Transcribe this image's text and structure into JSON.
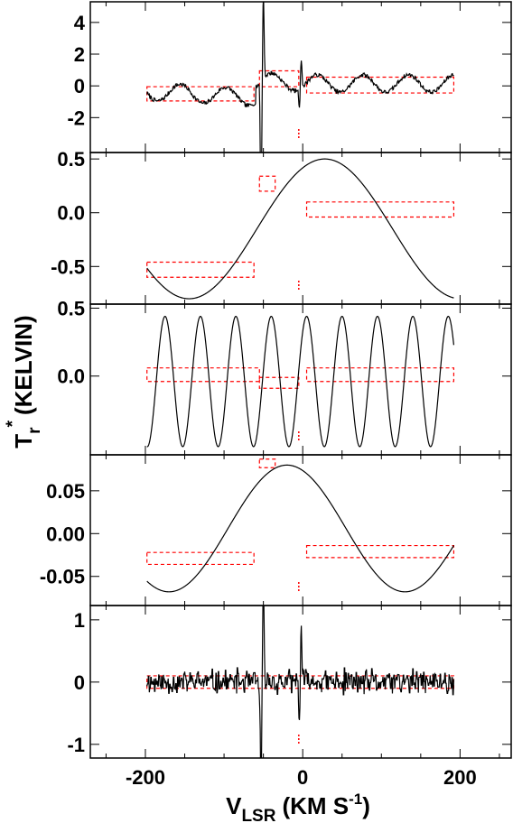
{
  "figure": {
    "ylabel_main": "T",
    "ylabel_sub": "r",
    "ylabel_sup": "*",
    "ylabel_units": "(KELVIN)",
    "xlabel_main": "V",
    "xlabel_sub": "LSR",
    "xlabel_units": "(KM S",
    "xlabel_exp": "-1",
    "xlabel_close": ")"
  },
  "chart_data": [
    {
      "type": "line",
      "panel": 1,
      "xlim": [
        -270,
        265
      ],
      "ylim": [
        -4.2,
        5.3
      ],
      "yticks": [
        4,
        2,
        0,
        -2
      ],
      "ytick_labels": [
        "4",
        "2",
        "0",
        "-2"
      ],
      "xticks": [
        -200,
        0,
        200
      ],
      "series": [
        {
          "kind": "baseline_ripple_plus_spikes",
          "x_range": [
            -198,
            192
          ]
        }
      ],
      "boxes": [
        [
          -198,
          -62,
          -0.95,
          -0.05
        ],
        [
          -55,
          -5,
          -0.05,
          0.95
        ],
        [
          5,
          192,
          -0.45,
          0.55
        ]
      ],
      "marker_x": -5,
      "color": "#000000",
      "box_color": "#ff0000"
    },
    {
      "type": "line",
      "panel": 2,
      "xlim": [
        -270,
        265
      ],
      "ylim": [
        -0.85,
        0.56
      ],
      "yticks": [
        0.5,
        0.0,
        -0.5
      ],
      "ytick_labels": [
        "0.5",
        "0.0",
        "-0.5"
      ],
      "xticks": [
        -200,
        0,
        200
      ],
      "series": [
        {
          "kind": "sine",
          "amplitude": 0.65,
          "offset": -0.15,
          "period": 345,
          "peak_x": 28,
          "x_range": [
            -198,
            192
          ]
        }
      ],
      "boxes": [
        [
          -198,
          -62,
          -0.6,
          -0.46
        ],
        [
          -55,
          -35,
          0.2,
          0.34
        ],
        [
          5,
          192,
          -0.04,
          0.1
        ]
      ],
      "marker_x": -5,
      "color": "#000000",
      "box_color": "#ff0000"
    },
    {
      "type": "line",
      "panel": 3,
      "xlim": [
        -270,
        265
      ],
      "ylim": [
        -0.58,
        0.53
      ],
      "yticks": [
        0.5,
        0.0
      ],
      "ytick_labels": [
        "0.5",
        "0.0"
      ],
      "xticks": [
        -200,
        0,
        200
      ],
      "series": [
        {
          "kind": "sine",
          "amplitude": 0.48,
          "offset": -0.04,
          "period": 45,
          "peak_x": -175,
          "x_range": [
            -198,
            192
          ]
        }
      ],
      "boxes": [
        [
          -198,
          -55,
          -0.04,
          0.06
        ],
        [
          -55,
          -5,
          -0.09,
          -0.01
        ],
        [
          5,
          192,
          -0.04,
          0.06
        ]
      ],
      "marker_x": -5,
      "color": "#000000",
      "box_color": "#ff0000"
    },
    {
      "type": "line",
      "panel": 4,
      "xlim": [
        -270,
        265
      ],
      "ylim": [
        -0.084,
        0.092
      ],
      "yticks": [
        0.05,
        0.0,
        -0.05
      ],
      "ytick_labels": [
        "0.05",
        "0.00",
        "-0.05"
      ],
      "xticks": [
        -200,
        0,
        200
      ],
      "series": [
        {
          "kind": "sine",
          "amplitude": 0.074,
          "offset": 0.006,
          "period": 300,
          "peak_x": -20,
          "x_range": [
            -198,
            192
          ]
        }
      ],
      "boxes": [
        [
          -198,
          -62,
          -0.036,
          -0.022
        ],
        [
          -55,
          -35,
          0.077,
          0.087
        ],
        [
          5,
          192,
          -0.028,
          -0.014
        ]
      ],
      "marker_x": -5,
      "color": "#000000",
      "box_color": "#ff0000"
    },
    {
      "type": "line",
      "panel": 5,
      "xlim": [
        -270,
        265
      ],
      "ylim": [
        -1.22,
        1.23
      ],
      "yticks": [
        1,
        0,
        -1
      ],
      "ytick_labels": [
        "1",
        "0",
        "-1"
      ],
      "xticks": [
        -200,
        0,
        200
      ],
      "xtick_labels": [
        "-200",
        "0",
        "200"
      ],
      "series": [
        {
          "kind": "noise_plus_spikes",
          "amplitude": 0.15,
          "x_range": [
            -198,
            192
          ]
        }
      ],
      "boxes": [
        [
          -198,
          192,
          -0.1,
          0.1
        ]
      ],
      "marker_x": -5,
      "color": "#000000",
      "box_color": "#ff0000"
    }
  ]
}
